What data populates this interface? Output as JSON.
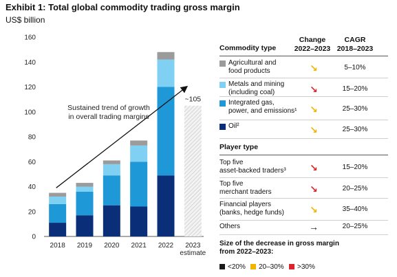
{
  "title": "Exhibit 1: Total global commodity trading gross margin",
  "subtitle": "US$ billion",
  "colors": {
    "agri": "#9b9b9b",
    "metals": "#7fd0f2",
    "gas": "#1f98d7",
    "oil": "#0a2f78",
    "green": "#1a1a1a",
    "amber": "#f1b400",
    "red": "#d9262b"
  },
  "chart_data": {
    "type": "bar",
    "stacked": true,
    "categories": [
      "2018",
      "2019",
      "2020",
      "2021",
      "2022",
      "2023\nestimate"
    ],
    "series": [
      {
        "name": "Oil²",
        "color": "#0a2f78",
        "values": [
          11,
          17,
          25,
          24,
          49,
          null
        ]
      },
      {
        "name": "Integrated gas, power, and emissions¹",
        "color": "#1f98d7",
        "values": [
          15,
          19,
          24,
          36,
          71,
          null
        ]
      },
      {
        "name": "Metals and mining (including coal)",
        "color": "#7fd0f2",
        "values": [
          6,
          4,
          9,
          13,
          22,
          null
        ]
      },
      {
        "name": "Agricultural and food products",
        "color": "#9b9b9b",
        "values": [
          3,
          3,
          3,
          4,
          6,
          null
        ]
      }
    ],
    "estimate": {
      "category": "2023\nestimate",
      "value": 105,
      "label": "~105"
    },
    "ylim": [
      0,
      160
    ],
    "yticks": [
      0,
      20,
      40,
      60,
      80,
      100,
      120,
      140,
      160
    ],
    "annotation": "Sustained trend of growth\nin overall trading margins",
    "grid": false
  },
  "table": {
    "col_headers": {
      "type": "Commodity type",
      "change": "Change\n2022–2023",
      "cagr": "CAGR\n2018–2023"
    },
    "commodity_rows": [
      {
        "label": "Agricultural and\nfood products",
        "swatch": "#9b9b9b",
        "arrow": "↘",
        "arrow_color": "#f1b400",
        "cagr": "5–10%"
      },
      {
        "label": "Metals and mining\n(including coal)",
        "swatch": "#7fd0f2",
        "arrow": "↘",
        "arrow_color": "#d9262b",
        "cagr": "15–20%"
      },
      {
        "label": "Integrated gas,\npower, and emissions¹",
        "swatch": "#1f98d7",
        "arrow": "↘",
        "arrow_color": "#f1b400",
        "cagr": "25–30%"
      },
      {
        "label": "Oil²",
        "swatch": "#0a2f78",
        "arrow": "↘",
        "arrow_color": "#f1b400",
        "cagr": "25–30%"
      }
    ],
    "player_header": "Player type",
    "player_rows": [
      {
        "label": "Top five\nasset-backed traders³",
        "arrow": "↘",
        "arrow_color": "#d9262b",
        "cagr": "15–20%"
      },
      {
        "label": "Top five\nmerchant traders",
        "arrow": "↘",
        "arrow_color": "#d9262b",
        "cagr": "20–25%"
      },
      {
        "label": "Financial players\n(banks, hedge funds)",
        "arrow": "↘",
        "arrow_color": "#f1b400",
        "cagr": "35–40%"
      },
      {
        "label": "Others",
        "arrow": "→",
        "arrow_color": "#1a1a1a",
        "cagr": "20–25%"
      }
    ],
    "legend_title": "Size of the decrease in gross margin\nfrom 2022–2023:",
    "legend": [
      {
        "label": "<20%",
        "color": "#1a1a1a"
      },
      {
        "label": "20–30%",
        "color": "#f1b400"
      },
      {
        "label": ">30%",
        "color": "#d9262b"
      }
    ]
  }
}
